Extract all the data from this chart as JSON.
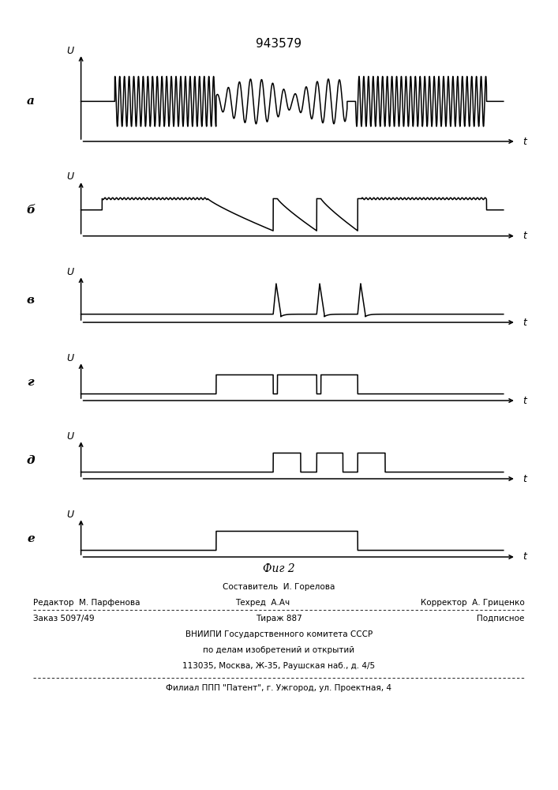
{
  "title": "943579",
  "fig_label": "Фиг 2",
  "subplot_labels": [
    "а",
    "б",
    "в",
    "г",
    "д",
    "е"
  ],
  "background_color": "#ffffff",
  "line_color": "#000000",
  "lw": 1.1,
  "footer": {
    "sostavitel": "Составитель  И. Горелова",
    "redaktor": "Редактор  М. Парфенова",
    "tehred": "Техред  А.Ач",
    "korrektor": "Корректор  А. Гриценко",
    "zakaz": "Заказ 5097/49",
    "tirazh": "Тираж 887",
    "podpisnoe": "Подписное",
    "vniip1": "ВНИИПИ Государственного комитета СССР",
    "vniip2": "по делам изобретений и открытий",
    "vniip3": "113035, Москва, Ж-35, Раушская наб., д. 4/5",
    "filial": "Филиал ППП \"Патент\", г. Ужгород, ул. Проектная, 4"
  }
}
